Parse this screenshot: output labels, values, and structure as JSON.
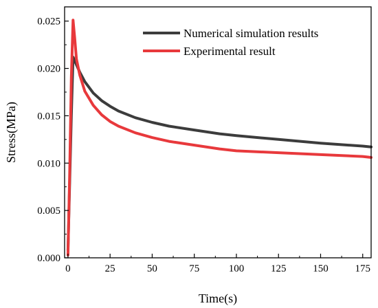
{
  "chart_data": {
    "type": "line",
    "title": "",
    "xlabel": "Time(s)",
    "ylabel": "Stress(MPa)",
    "xlim": [
      -2,
      180
    ],
    "ylim": [
      0,
      0.0265
    ],
    "x_ticks": [
      0,
      25,
      50,
      75,
      100,
      125,
      150,
      175
    ],
    "x_tick_labels": [
      "0",
      "25",
      "50",
      "75",
      "100",
      "125",
      "150",
      "175"
    ],
    "y_ticks": [
      0,
      0.005,
      0.01,
      0.015,
      0.02,
      0.025
    ],
    "y_tick_labels": [
      "0.000",
      "0.005",
      "0.010",
      "0.015",
      "0.020",
      "0.025"
    ],
    "grid": false,
    "legend_position": "top-right",
    "series": [
      {
        "name": "Numerical simulation results",
        "color": "#3c3c3c",
        "x": [
          0,
          1,
          2,
          3,
          5,
          7,
          10,
          15,
          20,
          25,
          30,
          40,
          50,
          60,
          75,
          90,
          100,
          125,
          150,
          175,
          180
        ],
        "y": [
          0.0008,
          0.008,
          0.015,
          0.0212,
          0.0204,
          0.0196,
          0.0186,
          0.0174,
          0.0166,
          0.016,
          0.0155,
          0.0148,
          0.0143,
          0.0139,
          0.0135,
          0.0131,
          0.0129,
          0.0125,
          0.0121,
          0.0118,
          0.0117
        ]
      },
      {
        "name": "Experimental result",
        "color": "#e8393c",
        "x": [
          0,
          1,
          2,
          3,
          4,
          5,
          7,
          10,
          15,
          20,
          25,
          30,
          40,
          50,
          60,
          75,
          90,
          100,
          125,
          150,
          175,
          180
        ],
        "y": [
          0.0003,
          0.009,
          0.019,
          0.0251,
          0.0232,
          0.021,
          0.0193,
          0.0176,
          0.0161,
          0.0151,
          0.0144,
          0.0139,
          0.0132,
          0.0127,
          0.0123,
          0.0119,
          0.0115,
          0.0113,
          0.0111,
          0.0109,
          0.0107,
          0.0106
        ]
      }
    ]
  }
}
